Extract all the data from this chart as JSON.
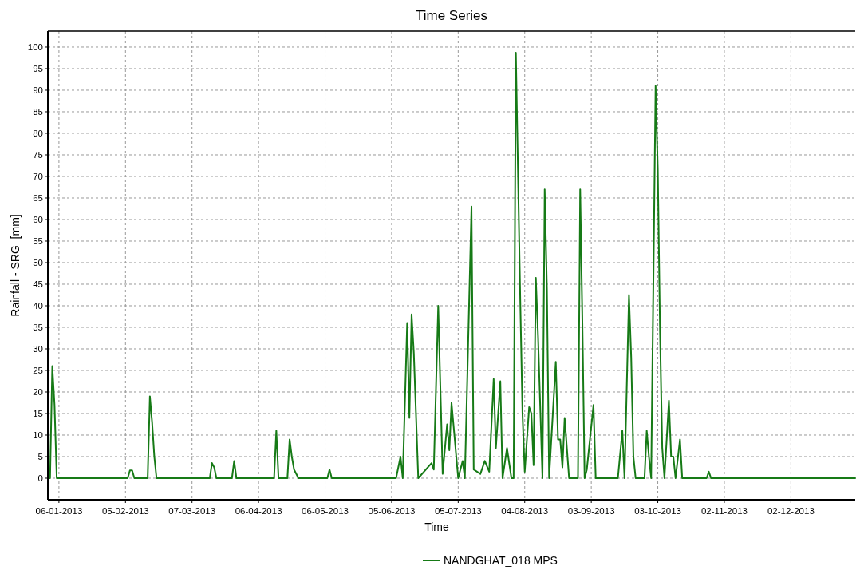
{
  "chart_data": {
    "type": "line",
    "title": "Time Series",
    "xlabel": "Time",
    "ylabel": "Rainfall - SRG  [mm]",
    "xlim": [
      "2013-01-01",
      "2013-12-31"
    ],
    "xticks": [
      {
        "value": "2013-01-06",
        "label": "06-01-2013"
      },
      {
        "value": "2013-02-05",
        "label": "05-02-2013"
      },
      {
        "value": "2013-03-07",
        "label": "07-03-2013"
      },
      {
        "value": "2013-04-06",
        "label": "06-04-2013"
      },
      {
        "value": "2013-05-06",
        "label": "06-05-2013"
      },
      {
        "value": "2013-06-05",
        "label": "05-06-2013"
      },
      {
        "value": "2013-07-05",
        "label": "05-07-2013"
      },
      {
        "value": "2013-08-04",
        "label": "04-08-2013"
      },
      {
        "value": "2013-09-03",
        "label": "03-09-2013"
      },
      {
        "value": "2013-10-03",
        "label": "03-10-2013"
      },
      {
        "value": "2013-11-02",
        "label": "02-11-2013"
      },
      {
        "value": "2013-12-02",
        "label": "02-12-2013"
      }
    ],
    "ylim": [
      -5,
      103.7
    ],
    "yticks": [
      0,
      5,
      10,
      15,
      20,
      25,
      30,
      35,
      40,
      45,
      50,
      55,
      60,
      65,
      70,
      75,
      80,
      85,
      90,
      95,
      100
    ],
    "grid": true,
    "legend": "bottom",
    "marker": "none",
    "line_style": "solid",
    "x": [
      "2013-01-01",
      "2013-01-02",
      "2013-01-03",
      "2013-01-04",
      "2013-01-05",
      "2013-02-06",
      "2013-02-07",
      "2013-02-08",
      "2013-02-09",
      "2013-02-15",
      "2013-02-16",
      "2013-02-17",
      "2013-02-18",
      "2013-02-19",
      "2013-03-15",
      "2013-03-16",
      "2013-03-17",
      "2013-03-18",
      "2013-03-25",
      "2013-03-26",
      "2013-03-27",
      "2013-04-13",
      "2013-04-14",
      "2013-04-15",
      "2013-04-19",
      "2013-04-20",
      "2013-04-21",
      "2013-04-22",
      "2013-04-24",
      "2013-05-07",
      "2013-05-08",
      "2013-05-09",
      "2013-06-07",
      "2013-06-09",
      "2013-06-10",
      "2013-06-12",
      "2013-06-13",
      "2013-06-14",
      "2013-06-15",
      "2013-06-17",
      "2013-06-23",
      "2013-06-24",
      "2013-06-26",
      "2013-06-28",
      "2013-06-30",
      "2013-07-01",
      "2013-07-02",
      "2013-07-05",
      "2013-07-07",
      "2013-07-08",
      "2013-07-11",
      "2013-07-12",
      "2013-07-15",
      "2013-07-17",
      "2013-07-19",
      "2013-07-21",
      "2013-07-22",
      "2013-07-24",
      "2013-07-25",
      "2013-07-27",
      "2013-07-29",
      "2013-07-30",
      "2013-07-31",
      "2013-08-01",
      "2013-08-02",
      "2013-08-03",
      "2013-08-04",
      "2013-08-06",
      "2013-08-07",
      "2013-08-08",
      "2013-08-09",
      "2013-08-10",
      "2013-08-12",
      "2013-08-13",
      "2013-08-14",
      "2013-08-15",
      "2013-08-18",
      "2013-08-19",
      "2013-08-20",
      "2013-08-21",
      "2013-08-22",
      "2013-08-24",
      "2013-08-28",
      "2013-08-29",
      "2013-08-30",
      "2013-08-31",
      "2013-09-01",
      "2013-09-04",
      "2013-09-05",
      "2013-09-15",
      "2013-09-17",
      "2013-09-18",
      "2013-09-20",
      "2013-09-21",
      "2013-09-22",
      "2013-09-23",
      "2013-09-27",
      "2013-09-28",
      "2013-09-29",
      "2013-09-30",
      "2013-10-02",
      "2013-10-03",
      "2013-10-04",
      "2013-10-05",
      "2013-10-06",
      "2013-10-08",
      "2013-10-09",
      "2013-10-10",
      "2013-10-11",
      "2013-10-13",
      "2013-10-14",
      "2013-10-25",
      "2013-10-26",
      "2013-10-27",
      "2013-12-31"
    ],
    "series": [
      {
        "name": "NANDGHAT_018 MPS",
        "color": "#167a16",
        "values": [
          0,
          0,
          26,
          17,
          0,
          0,
          1.8,
          1.8,
          0,
          0,
          19,
          13,
          5,
          0,
          0,
          3.5,
          2.5,
          0,
          0,
          4,
          0,
          0,
          11,
          0,
          0,
          9,
          5,
          2,
          0,
          0,
          2,
          0,
          0,
          5,
          0,
          36,
          14,
          38,
          29,
          0,
          3.5,
          2,
          40,
          1,
          12.5,
          6.5,
          17.5,
          0,
          4,
          0,
          63,
          2,
          1,
          4,
          1.5,
          23,
          7,
          22.5,
          0,
          7,
          0,
          0,
          98.7,
          70,
          41,
          15,
          1.5,
          16.5,
          15,
          3,
          46.5,
          33,
          0,
          67,
          44,
          0,
          27,
          9,
          9,
          2.5,
          14,
          0,
          0,
          67,
          36,
          0,
          2,
          17,
          0,
          0,
          11,
          0,
          42.5,
          28,
          5,
          0,
          0,
          11,
          5,
          0,
          91,
          71.5,
          34,
          7,
          0,
          18,
          5,
          5,
          0,
          9,
          0,
          0,
          1.5,
          0,
          0
        ]
      }
    ]
  }
}
